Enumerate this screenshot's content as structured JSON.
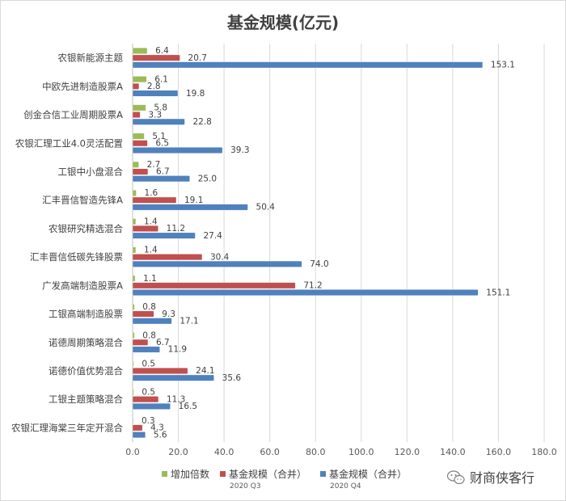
{
  "chart_data": {
    "type": "bar",
    "orientation": "horizontal",
    "title": "基金规模(亿元)",
    "categories": [
      "农银新能源主题",
      "中欧先进制造股票A",
      "创金合信工业周期股票A",
      "农银汇理工业4.0灵活配置",
      "工银中小盘混合",
      "汇丰晋信智造先锋A",
      "农银研究精选混合",
      "汇丰晋信低碳先锋股票",
      "广发高端制造股票A",
      "工银高端制造股票",
      "诺德周期策略混合",
      "诺德价值优势混合",
      "工银主题策略混合",
      "农银汇理海棠三年定开混合"
    ],
    "series": [
      {
        "name": "增加倍数",
        "color": "#9bbb59",
        "values": [
          6.4,
          6.1,
          5.8,
          5.1,
          2.7,
          1.6,
          1.4,
          1.4,
          1.1,
          0.8,
          0.8,
          0.5,
          0.5,
          0.3
        ]
      },
      {
        "name": "基金规模（合并）",
        "sub": "2020 Q3",
        "color": "#c0504d",
        "values": [
          20.7,
          2.8,
          3.3,
          6.5,
          6.7,
          19.1,
          11.2,
          30.4,
          71.2,
          9.3,
          6.7,
          24.1,
          11.3,
          4.3
        ]
      },
      {
        "name": "基金规模（合并）",
        "sub": "2020 Q4",
        "color": "#4f81bd",
        "values": [
          153.1,
          19.8,
          22.8,
          39.3,
          25.0,
          50.4,
          27.4,
          74.0,
          151.1,
          17.1,
          11.9,
          35.6,
          16.5,
          5.6
        ]
      }
    ],
    "xlim": [
      0,
      180
    ],
    "xticks": [
      "0.0",
      "20.0",
      "40.0",
      "60.0",
      "80.0",
      "100.0",
      "120.0",
      "140.0",
      "160.0",
      "180.0"
    ],
    "grid": true,
    "legend_position": "bottom"
  },
  "watermark": "财商侠客行"
}
